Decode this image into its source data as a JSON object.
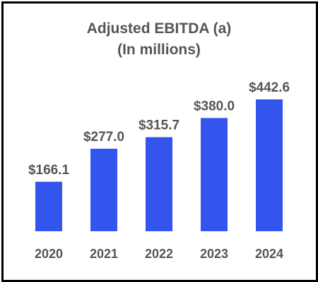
{
  "chart_data": {
    "type": "bar",
    "title": "Adjusted EBITDA (a)",
    "subtitle": "(In millions)",
    "categories": [
      "2020",
      "2021",
      "2022",
      "2023",
      "2024"
    ],
    "values": [
      166.1,
      277.0,
      315.7,
      380.0,
      442.6
    ],
    "value_labels": [
      "$166.1",
      "$277.0",
      "$315.7",
      "$380.0",
      "$442.6"
    ],
    "bar_color": "#3355ee",
    "text_color": "#555555",
    "grid": false,
    "legend": "none"
  }
}
